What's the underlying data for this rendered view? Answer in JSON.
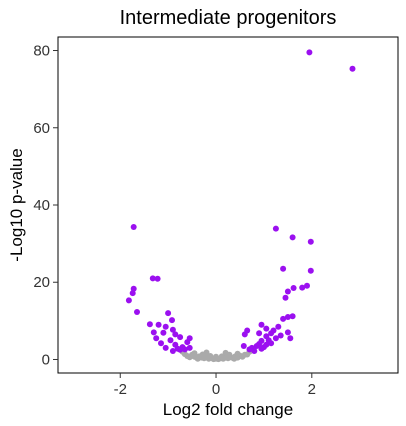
{
  "chart_data": {
    "type": "scatter",
    "title": "Intermediate progenitors",
    "xlabel": "Log2 fold change",
    "ylabel": "-Log10 p-value",
    "xlim": [
      -3.3,
      3.8
    ],
    "ylim": [
      -3.5,
      83.5
    ],
    "x_ticks": [
      -2,
      0,
      2
    ],
    "x_tick_labels": [
      "-2",
      "0",
      "2"
    ],
    "y_ticks": [
      0,
      20,
      40,
      60,
      80
    ],
    "y_tick_labels": [
      "0",
      "20",
      "40",
      "60",
      "80"
    ],
    "grid": false,
    "legend": "none",
    "colors": {
      "significant": "#9b10f0",
      "not_significant": "#aaaaaa",
      "frame": "#000000"
    },
    "series": [
      {
        "color": "#aaaaaa",
        "points": [
          [
            -0.6,
            0.9
          ],
          [
            -0.55,
            0.6
          ],
          [
            -0.5,
            1.2
          ],
          [
            -0.45,
            0.7
          ],
          [
            -0.4,
            0.4
          ],
          [
            -0.35,
            0.8
          ],
          [
            -0.3,
            0.5
          ],
          [
            -0.25,
            0.3
          ],
          [
            -0.2,
            0.6
          ],
          [
            -0.15,
            0.2
          ],
          [
            -0.1,
            0.4
          ],
          [
            -0.05,
            0.1
          ],
          [
            0.0,
            0.2
          ],
          [
            0.05,
            0.1
          ],
          [
            0.1,
            0.3
          ],
          [
            0.15,
            0.2
          ],
          [
            0.2,
            0.5
          ],
          [
            0.25,
            0.3
          ],
          [
            0.3,
            0.6
          ],
          [
            0.35,
            0.4
          ],
          [
            0.4,
            0.8
          ],
          [
            0.45,
            0.5
          ],
          [
            0.5,
            1.0
          ],
          [
            0.55,
            0.7
          ],
          [
            0.6,
            1.2
          ],
          [
            -0.28,
            1.3
          ],
          [
            0.28,
            1.2
          ],
          [
            -0.12,
            0.9
          ],
          [
            0.12,
            0.8
          ],
          [
            0.0,
            0.7
          ],
          [
            -0.45,
            1.6
          ],
          [
            0.45,
            1.5
          ],
          [
            -0.2,
            1.8
          ],
          [
            0.2,
            1.7
          ],
          [
            -0.65,
            1.4
          ],
          [
            0.65,
            1.3
          ],
          [
            -0.38,
            0.2
          ],
          [
            0.38,
            0.2
          ],
          [
            -0.7,
            2.0
          ],
          [
            0.7,
            2.0
          ]
        ]
      },
      {
        "color": "#9b10f0",
        "points": [
          [
            1.95,
            79.5
          ],
          [
            2.85,
            75.3
          ],
          [
            -1.72,
            34.3
          ],
          [
            1.25,
            33.9
          ],
          [
            1.6,
            31.6
          ],
          [
            1.98,
            30.5
          ],
          [
            1.4,
            23.5
          ],
          [
            1.98,
            23.0
          ],
          [
            -1.32,
            21.0
          ],
          [
            -1.22,
            20.9
          ],
          [
            1.62,
            18.5
          ],
          [
            1.8,
            18.6
          ],
          [
            1.9,
            19.1
          ],
          [
            -1.72,
            18.3
          ],
          [
            -1.74,
            17.2
          ],
          [
            1.5,
            17.6
          ],
          [
            1.45,
            16.0
          ],
          [
            -1.82,
            15.3
          ],
          [
            -1.65,
            12.3
          ],
          [
            1.5,
            11.0
          ],
          [
            1.6,
            11.2
          ],
          [
            -1.38,
            9.1
          ],
          [
            -1.2,
            9.0
          ],
          [
            -1.05,
            8.5
          ],
          [
            -0.9,
            7.7
          ],
          [
            -1.1,
            6.9
          ],
          [
            -0.95,
            5.0
          ],
          [
            -0.85,
            3.8
          ],
          [
            -1.0,
            12.0
          ],
          [
            -0.92,
            10.2
          ],
          [
            0.75,
            3.0
          ],
          [
            0.9,
            4.0
          ],
          [
            1.05,
            6.0
          ],
          [
            1.2,
            7.5
          ],
          [
            1.3,
            8.5
          ],
          [
            1.4,
            10.5
          ],
          [
            1.1,
            5.0
          ],
          [
            0.85,
            3.5
          ],
          [
            0.95,
            4.8
          ],
          [
            1.0,
            3.2
          ],
          [
            1.15,
            4.2
          ],
          [
            1.25,
            5.5
          ],
          [
            -0.75,
            2.5
          ],
          [
            -0.7,
            3.2
          ],
          [
            -0.8,
            2.8
          ],
          [
            -0.9,
            2.2
          ],
          [
            -0.65,
            2.6
          ],
          [
            -1.05,
            3.0
          ],
          [
            -1.15,
            4.2
          ],
          [
            -1.25,
            5.5
          ],
          [
            -0.85,
            6.5
          ],
          [
            -0.75,
            5.8
          ],
          [
            0.7,
            2.6
          ],
          [
            0.8,
            2.2
          ],
          [
            0.95,
            2.8
          ],
          [
            1.05,
            3.8
          ],
          [
            1.15,
            6.8
          ],
          [
            1.35,
            6.2
          ],
          [
            1.5,
            7.0
          ],
          [
            1.55,
            5.5
          ],
          [
            0.6,
            6.5
          ],
          [
            0.65,
            7.5
          ],
          [
            0.95,
            9.0
          ],
          [
            1.05,
            8.0
          ],
          [
            -0.6,
            4.5
          ],
          [
            -0.55,
            3.0
          ],
          [
            -1.3,
            7.0
          ],
          [
            -0.55,
            5.5
          ],
          [
            0.58,
            3.5
          ],
          [
            0.9,
            6.8
          ]
        ]
      }
    ]
  }
}
